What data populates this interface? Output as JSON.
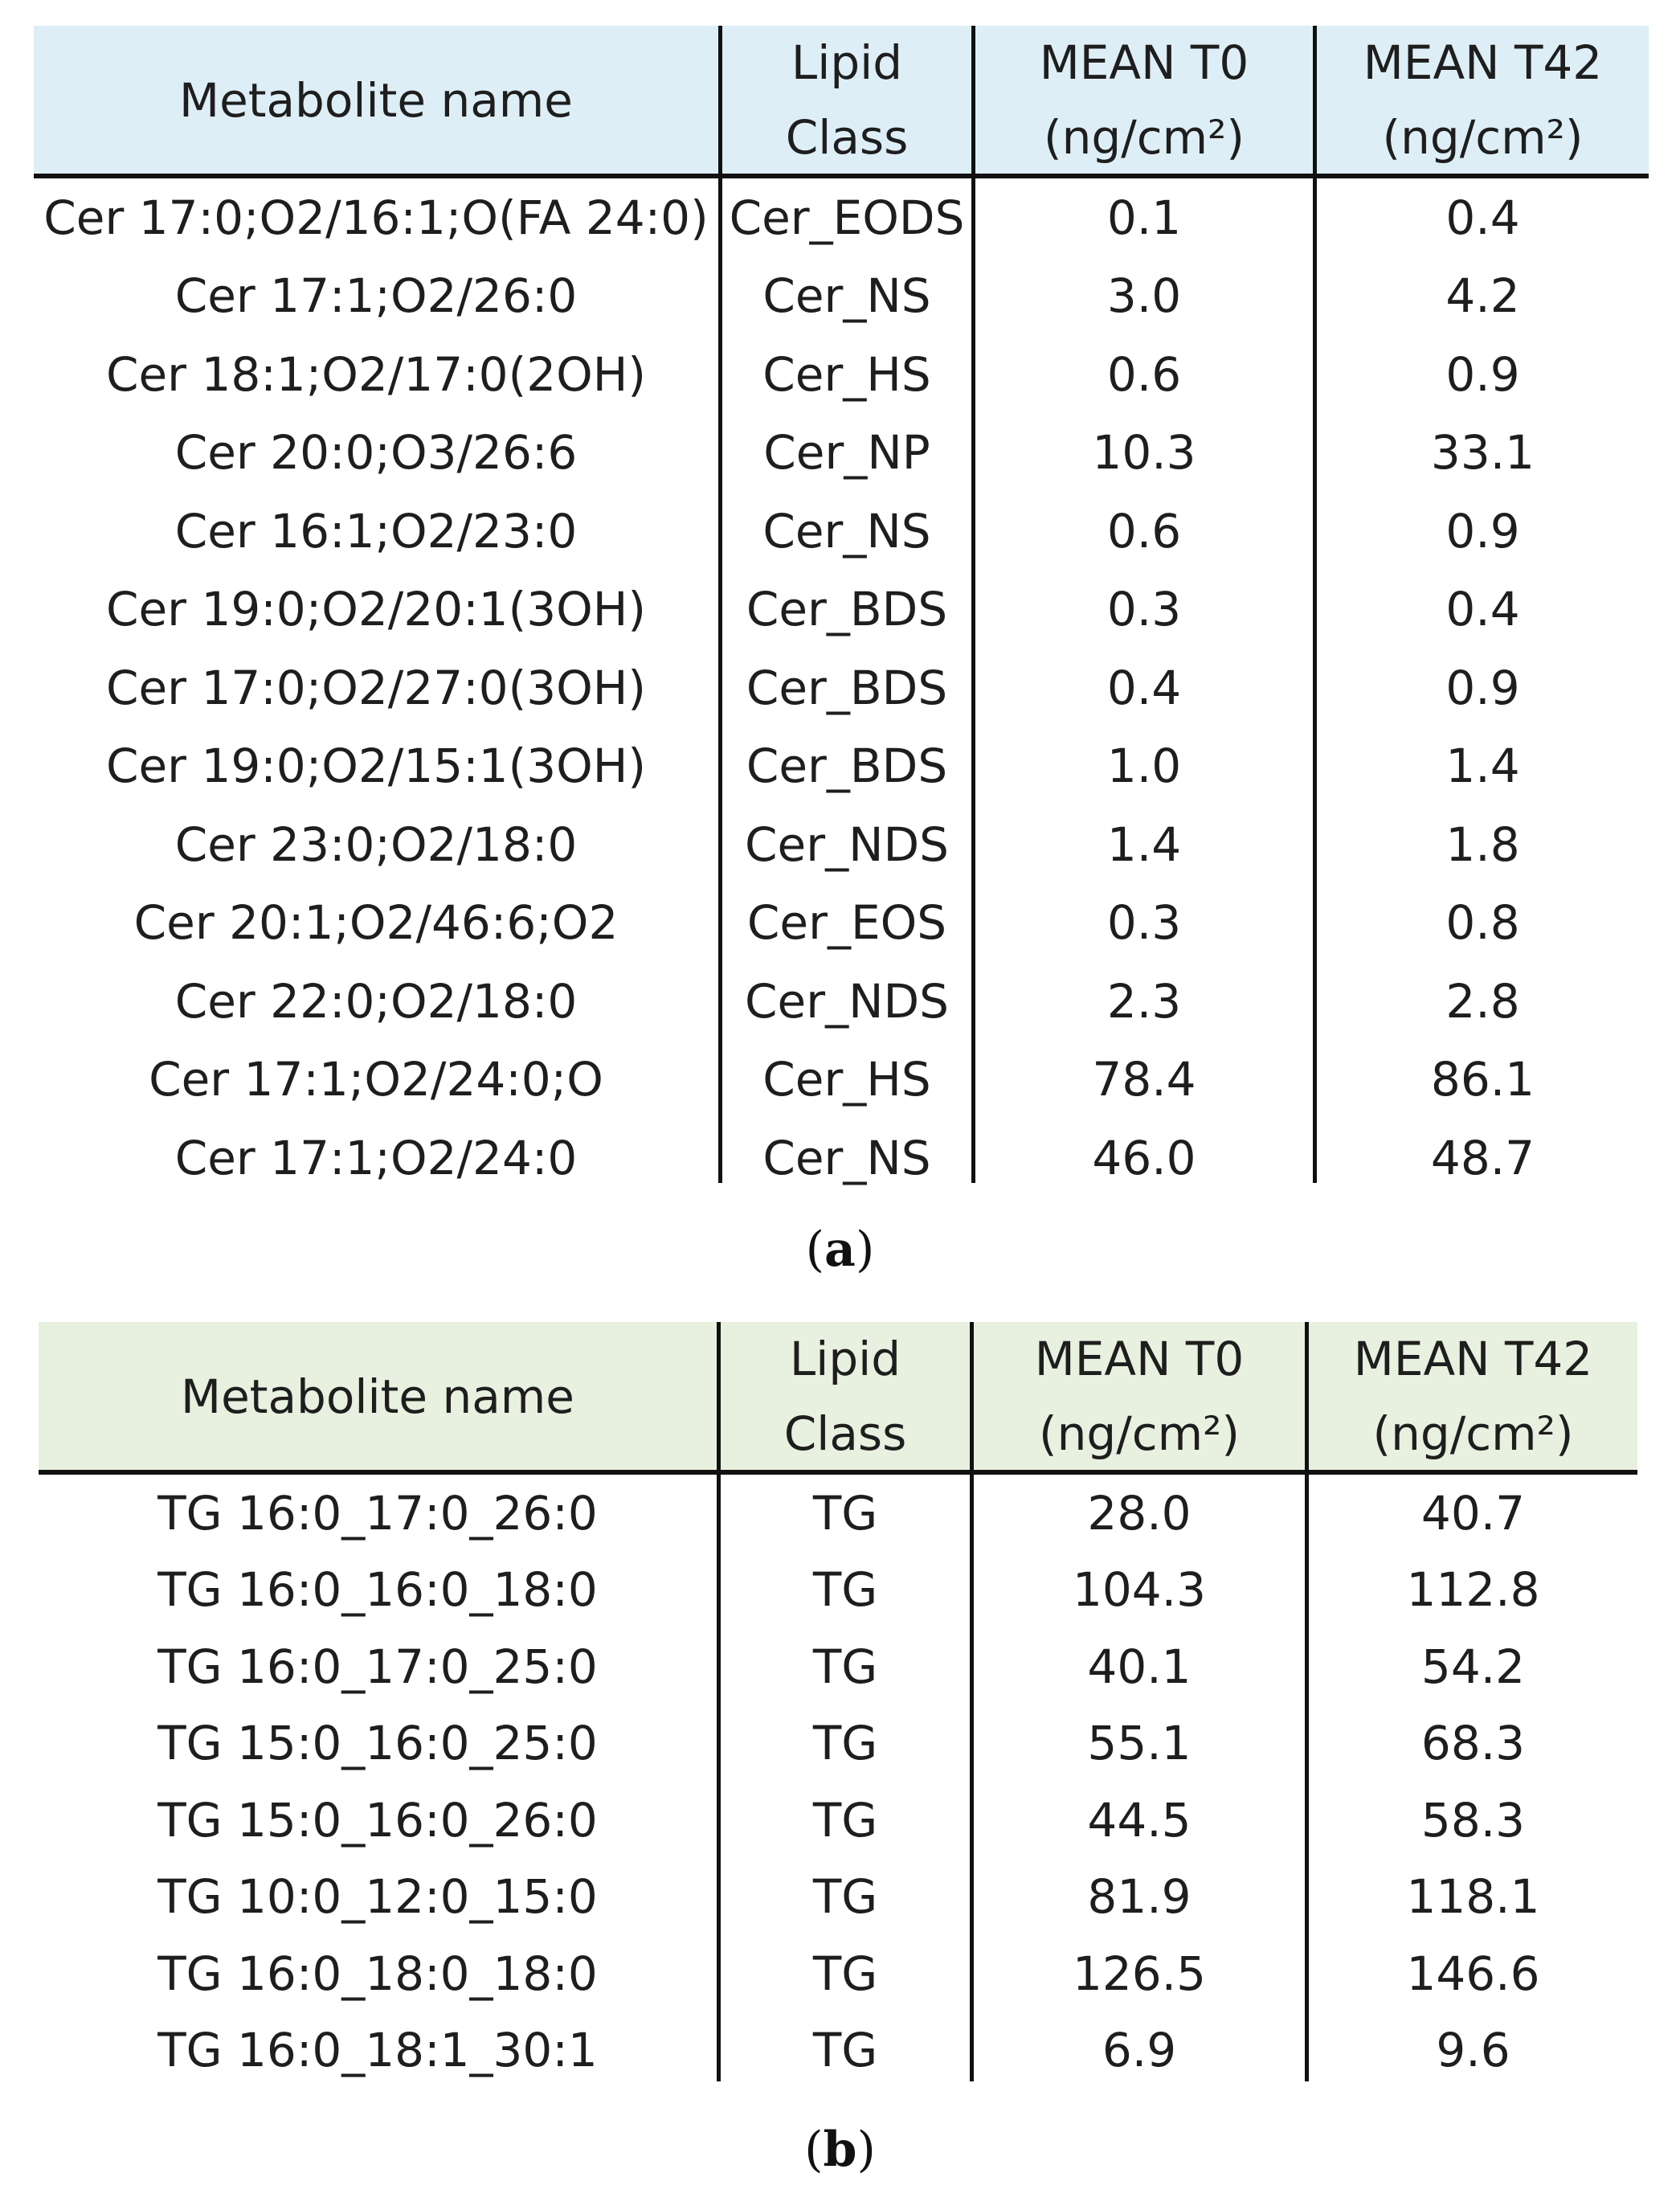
{
  "table_a": {
    "headers": {
      "name": "Metabolite name",
      "class_line1": "Lipid",
      "class_line2": "Class",
      "t0_line1": "MEAN T0",
      "t0_line2": "(ng/cm²)",
      "t42_line1": "MEAN T42",
      "t42_line2": "(ng/cm²)"
    },
    "rows": [
      {
        "name": "Cer 17:0;O2/16:1;O(FA 24:0)",
        "class": "Cer_EODS",
        "t0": "0.1",
        "t42": "0.4"
      },
      {
        "name": "Cer 17:1;O2/26:0",
        "class": "Cer_NS",
        "t0": "3.0",
        "t42": "4.2"
      },
      {
        "name": "Cer 18:1;O2/17:0(2OH)",
        "class": "Cer_HS",
        "t0": "0.6",
        "t42": "0.9"
      },
      {
        "name": "Cer 20:0;O3/26:6",
        "class": "Cer_NP",
        "t0": "10.3",
        "t42": "33.1"
      },
      {
        "name": "Cer 16:1;O2/23:0",
        "class": "Cer_NS",
        "t0": "0.6",
        "t42": "0.9"
      },
      {
        "name": "Cer 19:0;O2/20:1(3OH)",
        "class": "Cer_BDS",
        "t0": "0.3",
        "t42": "0.4"
      },
      {
        "name": "Cer 17:0;O2/27:0(3OH)",
        "class": "Cer_BDS",
        "t0": "0.4",
        "t42": "0.9"
      },
      {
        "name": "Cer 19:0;O2/15:1(3OH)",
        "class": "Cer_BDS",
        "t0": "1.0",
        "t42": "1.4"
      },
      {
        "name": "Cer 23:0;O2/18:0",
        "class": "Cer_NDS",
        "t0": "1.4",
        "t42": "1.8"
      },
      {
        "name": "Cer 20:1;O2/46:6;O2",
        "class": "Cer_EOS",
        "t0": "0.3",
        "t42": "0.8"
      },
      {
        "name": "Cer 22:0;O2/18:0",
        "class": "Cer_NDS",
        "t0": "2.3",
        "t42": "2.8"
      },
      {
        "name": "Cer 17:1;O2/24:0;O",
        "class": "Cer_HS",
        "t0": "78.4",
        "t42": "86.1"
      },
      {
        "name": "Cer 17:1;O2/24:0",
        "class": "Cer_NS",
        "t0": "46.0",
        "t42": "48.7"
      }
    ],
    "caption_open": "(",
    "caption_letter": "a",
    "caption_close": ")",
    "header_color": "#deeef6"
  },
  "table_b": {
    "headers": {
      "name": "Metabolite name",
      "class_line1": "Lipid",
      "class_line2": "Class",
      "t0_line1": "MEAN T0",
      "t0_line2": "(ng/cm²)",
      "t42_line1": "MEAN T42",
      "t42_line2": "(ng/cm²)"
    },
    "rows": [
      {
        "name": "TG 16:0_17:0_26:0",
        "class": "TG",
        "t0": "28.0",
        "t42": "40.7"
      },
      {
        "name": "TG 16:0_16:0_18:0",
        "class": "TG",
        "t0": "104.3",
        "t42": "112.8"
      },
      {
        "name": "TG 16:0_17:0_25:0",
        "class": "TG",
        "t0": "40.1",
        "t42": "54.2"
      },
      {
        "name": "TG 15:0_16:0_25:0",
        "class": "TG",
        "t0": "55.1",
        "t42": "68.3"
      },
      {
        "name": "TG 15:0_16:0_26:0",
        "class": "TG",
        "t0": "44.5",
        "t42": "58.3"
      },
      {
        "name": "TG 10:0_12:0_15:0",
        "class": "TG",
        "t0": "81.9",
        "t42": "118.1"
      },
      {
        "name": "TG 16:0_18:0_18:0",
        "class": "TG",
        "t0": "126.5",
        "t42": "146.6"
      },
      {
        "name": "TG 16:0_18:1_30:1",
        "class": "TG",
        "t0": "6.9",
        "t42": "9.6"
      }
    ],
    "caption_open": "(",
    "caption_letter": "b",
    "caption_close": ")",
    "header_color": "#e8f0df"
  }
}
